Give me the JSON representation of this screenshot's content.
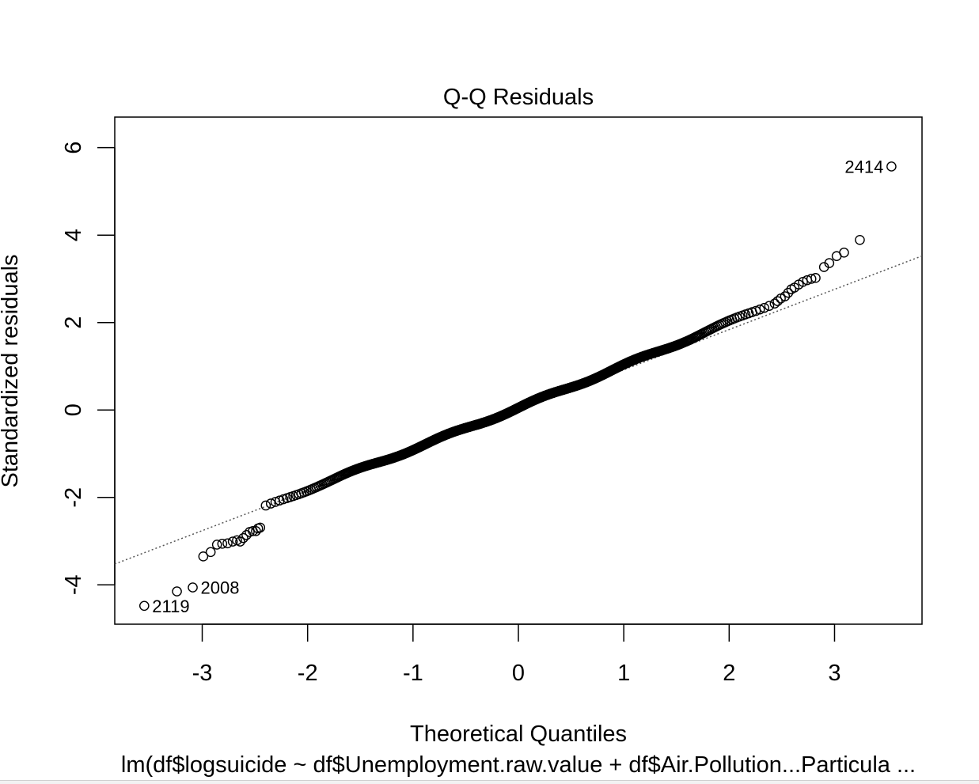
{
  "chart_data": {
    "type": "scatter",
    "title": "Q-Q Residuals",
    "xlabel": "Theoretical Quantiles",
    "ylabel": "Standardized residuals",
    "subtitle": "lm(df$logsuicide ~ df$Unemployment.raw.value + df$Air.Pollution...Particula ...",
    "xlim": [
      -3.83,
      3.83
    ],
    "ylim": [
      -4.9,
      6.7
    ],
    "xticks": [
      -3,
      -2,
      -1,
      0,
      1,
      2,
      3
    ],
    "xtick_labels": [
      "-3",
      "-2",
      "-1",
      "0",
      "1",
      "2",
      "3"
    ],
    "yticks": [
      -4,
      -2,
      0,
      2,
      4,
      6
    ],
    "ytick_labels": [
      "-4",
      "-2",
      "0",
      "2",
      "4",
      "6"
    ],
    "reference_line": {
      "style": "dotted",
      "slope": 0.92,
      "intercept": 0.0
    },
    "points_qq": {
      "n": 2600,
      "pattern": "approximately normal, light tails in the middle, heavier tails at both ends",
      "tail_points": [
        {
          "x": -3.55,
          "y": -4.48
        },
        {
          "x": -3.24,
          "y": -4.15
        },
        {
          "x": -3.09,
          "y": -4.06
        },
        {
          "x": -2.99,
          "y": -3.35
        },
        {
          "x": -2.92,
          "y": -3.25
        },
        {
          "x": -2.86,
          "y": -3.08
        },
        {
          "x": -2.81,
          "y": -3.06
        },
        {
          "x": -2.76,
          "y": -3.05
        },
        {
          "x": -2.71,
          "y": -3.01
        },
        {
          "x": -2.67,
          "y": -2.98
        },
        {
          "x": -2.64,
          "y": -3.01
        },
        {
          "x": -2.61,
          "y": -2.93
        },
        {
          "x": -2.58,
          "y": -2.86
        },
        {
          "x": -2.55,
          "y": -2.79
        },
        {
          "x": -2.52,
          "y": -2.77
        },
        {
          "x": -2.49,
          "y": -2.77
        },
        {
          "x": -2.47,
          "y": -2.71
        },
        {
          "x": -2.45,
          "y": -2.69
        },
        {
          "x": 2.46,
          "y": 2.49
        },
        {
          "x": 2.49,
          "y": 2.55
        },
        {
          "x": 2.53,
          "y": 2.6
        },
        {
          "x": 2.56,
          "y": 2.68
        },
        {
          "x": 2.59,
          "y": 2.76
        },
        {
          "x": 2.62,
          "y": 2.8
        },
        {
          "x": 2.66,
          "y": 2.87
        },
        {
          "x": 2.7,
          "y": 2.93
        },
        {
          "x": 2.74,
          "y": 2.97
        },
        {
          "x": 2.78,
          "y": 3.0
        },
        {
          "x": 2.82,
          "y": 3.02
        },
        {
          "x": 2.9,
          "y": 3.27
        },
        {
          "x": 2.95,
          "y": 3.36
        },
        {
          "x": 3.02,
          "y": 3.52
        },
        {
          "x": 3.09,
          "y": 3.6
        },
        {
          "x": 3.24,
          "y": 3.89
        },
        {
          "x": 3.54,
          "y": 5.57
        }
      ],
      "labelled_points": [
        {
          "label": "2414",
          "x": 3.54,
          "y": 5.57,
          "side": "left"
        },
        {
          "label": "2008",
          "x": -3.09,
          "y": -4.06,
          "side": "right"
        },
        {
          "label": "2119",
          "x": -3.55,
          "y": -4.48,
          "side": "right"
        }
      ]
    }
  }
}
